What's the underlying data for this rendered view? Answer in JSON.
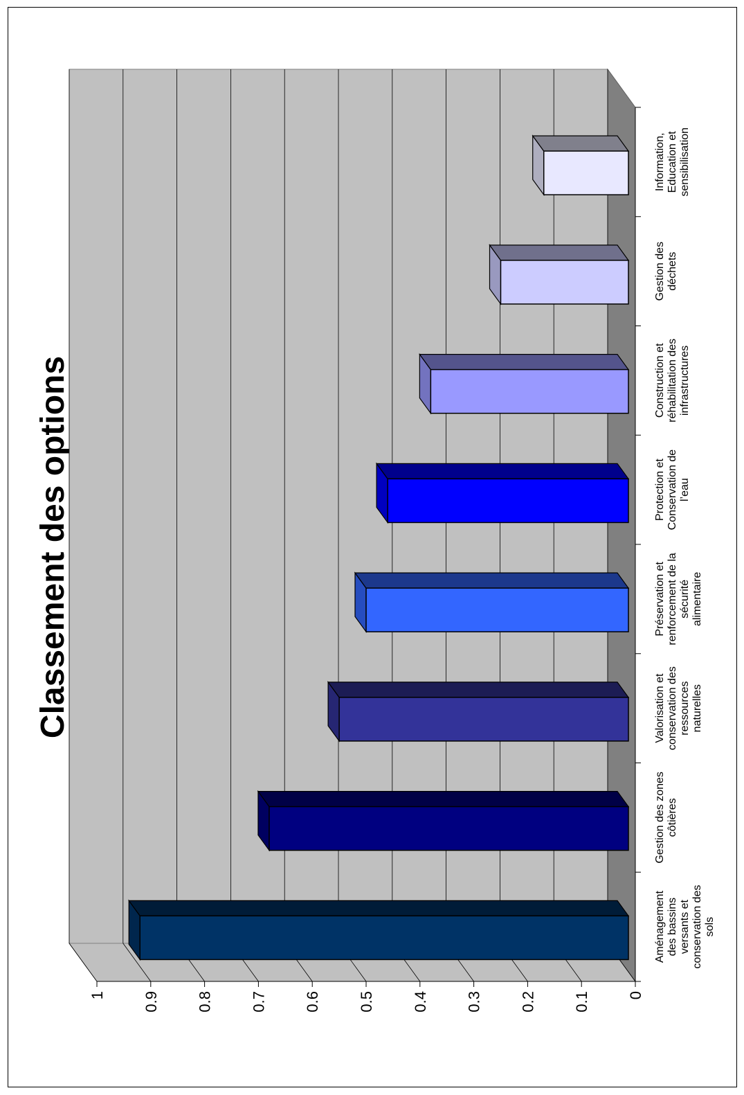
{
  "chart_data": {
    "type": "bar",
    "title": "Classement des options",
    "xlabel": "",
    "ylabel": "",
    "ylim": [
      0,
      1
    ],
    "ticks": [
      "0",
      "0.1",
      "0.2",
      "0.3",
      "0.4",
      "0.5",
      "0.6",
      "0.7",
      "0.8",
      "0.9",
      "1"
    ],
    "grid": true,
    "legend": "none",
    "categories": [
      "Aménagement des bassins versants et conservation des sols",
      "Gestion des zones côtières",
      "Valorisation et conservation des ressources naturelles",
      "Préservation et renforcement de la sécurité alimentaire",
      "Protection et Conservation de l’eau",
      "Construction et réhabilitation des infrastructures",
      "Gestion des déchets",
      "Information, Education et sensibilisation"
    ],
    "category_lines": [
      [
        "Aménagement",
        "des bassins",
        "versants et",
        "conservation des",
        "sols"
      ],
      [
        "Gestion des zones",
        "côtières"
      ],
      [
        "Valorisation et",
        "conservation des",
        "ressources",
        "naturelles"
      ],
      [
        "Préservation et",
        "renforcement de la",
        "sécurité",
        "alimentaire"
      ],
      [
        "Protection et",
        "Conservation de",
        "l’eau"
      ],
      [
        "Construction et",
        "réhabilitation des",
        "infrastructures"
      ],
      [
        "Gestion des",
        "déchets"
      ],
      [
        "Information,",
        "Education et",
        "sensibilisation"
      ]
    ],
    "values": [
      0.92,
      0.68,
      0.55,
      0.5,
      0.46,
      0.38,
      0.25,
      0.17
    ],
    "colors": [
      "#003366",
      "#000080",
      "#333399",
      "#3366FF",
      "#0000FF",
      "#9999FF",
      "#CCCCFF",
      "#E8E8FF"
    ]
  }
}
